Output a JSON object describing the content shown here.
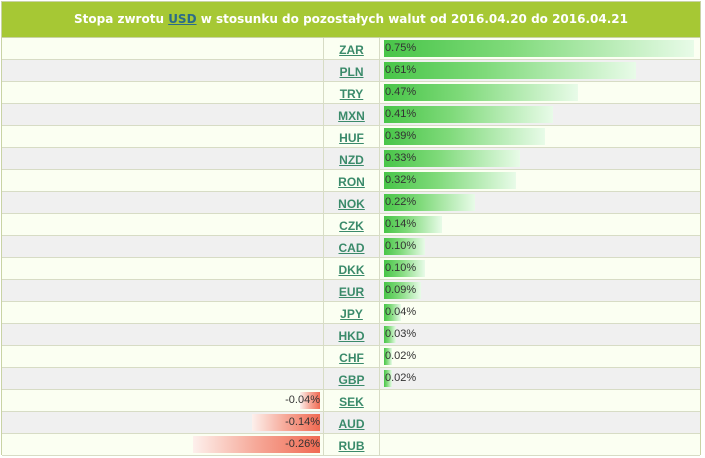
{
  "header": {
    "prefix": "Stopa zwrotu",
    "base_currency": "USD",
    "suffix": "w stosunku do pozostałych walut od 2016.04.20 do 2016.04.21"
  },
  "colors": {
    "header_bg": "#a6c834",
    "positive": "#48c548",
    "negative": "#f06a52",
    "link": "#3a8a6a"
  },
  "max_abs_return": 0.75,
  "rows": [
    {
      "code": "ZAR",
      "value": 0.75,
      "label": "0.75%"
    },
    {
      "code": "PLN",
      "value": 0.61,
      "label": "0.61%"
    },
    {
      "code": "TRY",
      "value": 0.47,
      "label": "0.47%"
    },
    {
      "code": "MXN",
      "value": 0.41,
      "label": "0.41%"
    },
    {
      "code": "HUF",
      "value": 0.39,
      "label": "0.39%"
    },
    {
      "code": "NZD",
      "value": 0.33,
      "label": "0.33%"
    },
    {
      "code": "RON",
      "value": 0.32,
      "label": "0.32%"
    },
    {
      "code": "NOK",
      "value": 0.22,
      "label": "0.22%"
    },
    {
      "code": "CZK",
      "value": 0.14,
      "label": "0.14%"
    },
    {
      "code": "CAD",
      "value": 0.1,
      "label": "0.10%"
    },
    {
      "code": "DKK",
      "value": 0.1,
      "label": "0.10%"
    },
    {
      "code": "EUR",
      "value": 0.09,
      "label": "0.09%"
    },
    {
      "code": "JPY",
      "value": 0.04,
      "label": "0.04%"
    },
    {
      "code": "HKD",
      "value": 0.03,
      "label": "0.03%"
    },
    {
      "code": "CHF",
      "value": 0.02,
      "label": "0.02%"
    },
    {
      "code": "GBP",
      "value": 0.02,
      "label": "0.02%"
    },
    {
      "code": "SEK",
      "value": -0.04,
      "label": "-0.04%"
    },
    {
      "code": "AUD",
      "value": -0.14,
      "label": "-0.14%"
    },
    {
      "code": "RUB",
      "value": -0.26,
      "label": "-0.26%"
    }
  ]
}
